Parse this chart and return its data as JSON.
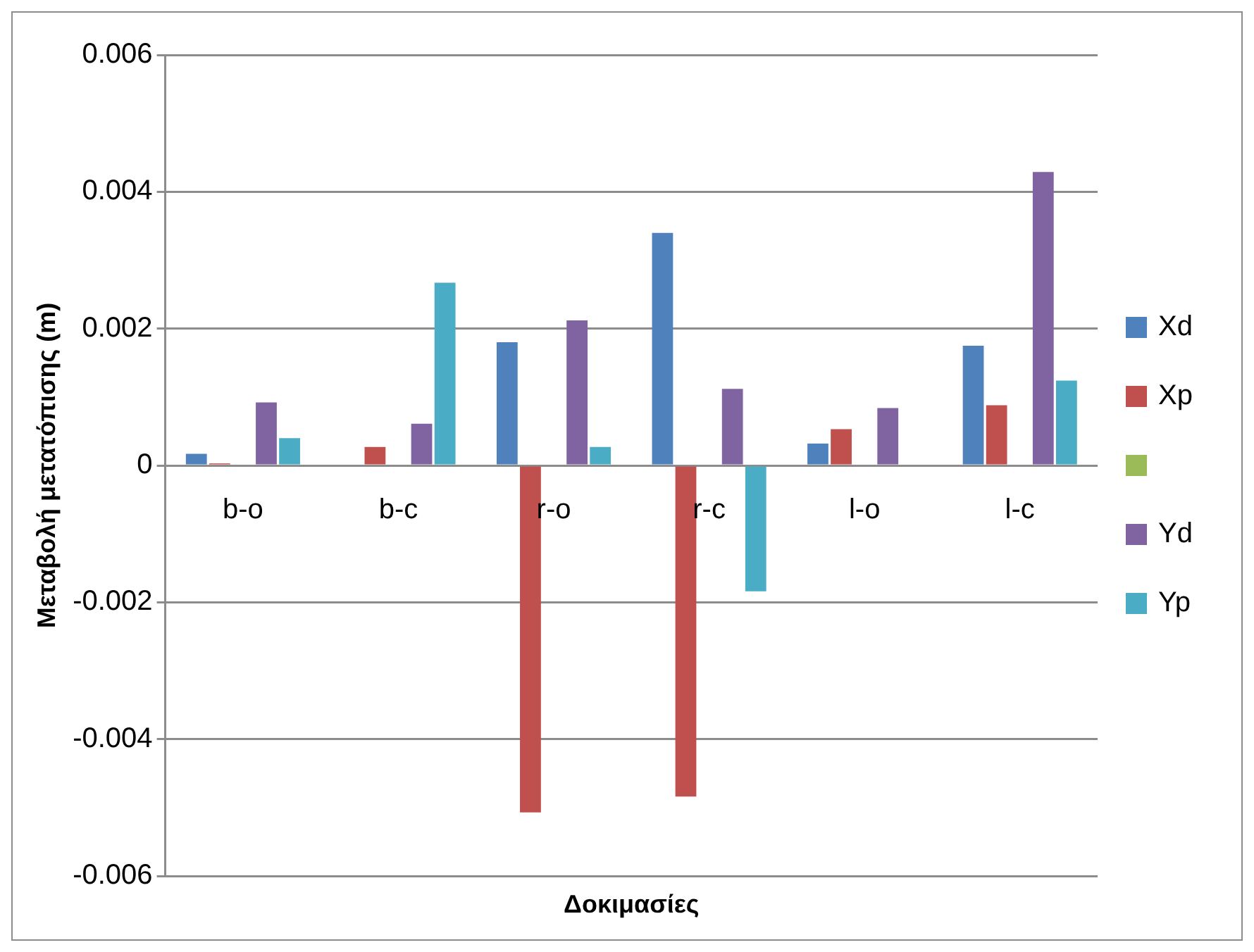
{
  "chart_data": {
    "type": "bar",
    "xlabel": "Δοκιμασίες",
    "ylabel": "Μεταβολή μετατόπισης (m)",
    "categories": [
      "b-o",
      "b-c",
      "r-o",
      "r-c",
      "l-o",
      "l-c"
    ],
    "series": [
      {
        "name": "Xd",
        "color": "#4f81bd",
        "values": [
          0.00017,
          0,
          0.0018,
          0.0034,
          0.00032,
          0.00175
        ]
      },
      {
        "name": "Xp",
        "color": "#c0504d",
        "values": [
          3e-05,
          0.00027,
          -0.00507,
          -0.00484,
          0.00053,
          0.00088
        ]
      },
      {
        "color": "#9bbb59",
        "values": [
          0,
          0,
          0,
          0,
          0,
          0
        ]
      },
      {
        "name": "Yd",
        "color": "#8064a2",
        "values": [
          0.00092,
          0.00061,
          0.00212,
          0.00112,
          0.00084,
          0.00429
        ]
      },
      {
        "name": "Yp",
        "color": "#4bacc6",
        "values": [
          0.0004,
          0.00267,
          0.00027,
          -0.00184,
          0,
          0.00124
        ]
      }
    ],
    "ylim": [
      -0.006,
      0.006
    ],
    "yticks": [
      -0.006,
      -0.004,
      -0.002,
      0,
      0.002,
      0.004,
      0.006
    ],
    "grid": "y",
    "legend": "right"
  }
}
